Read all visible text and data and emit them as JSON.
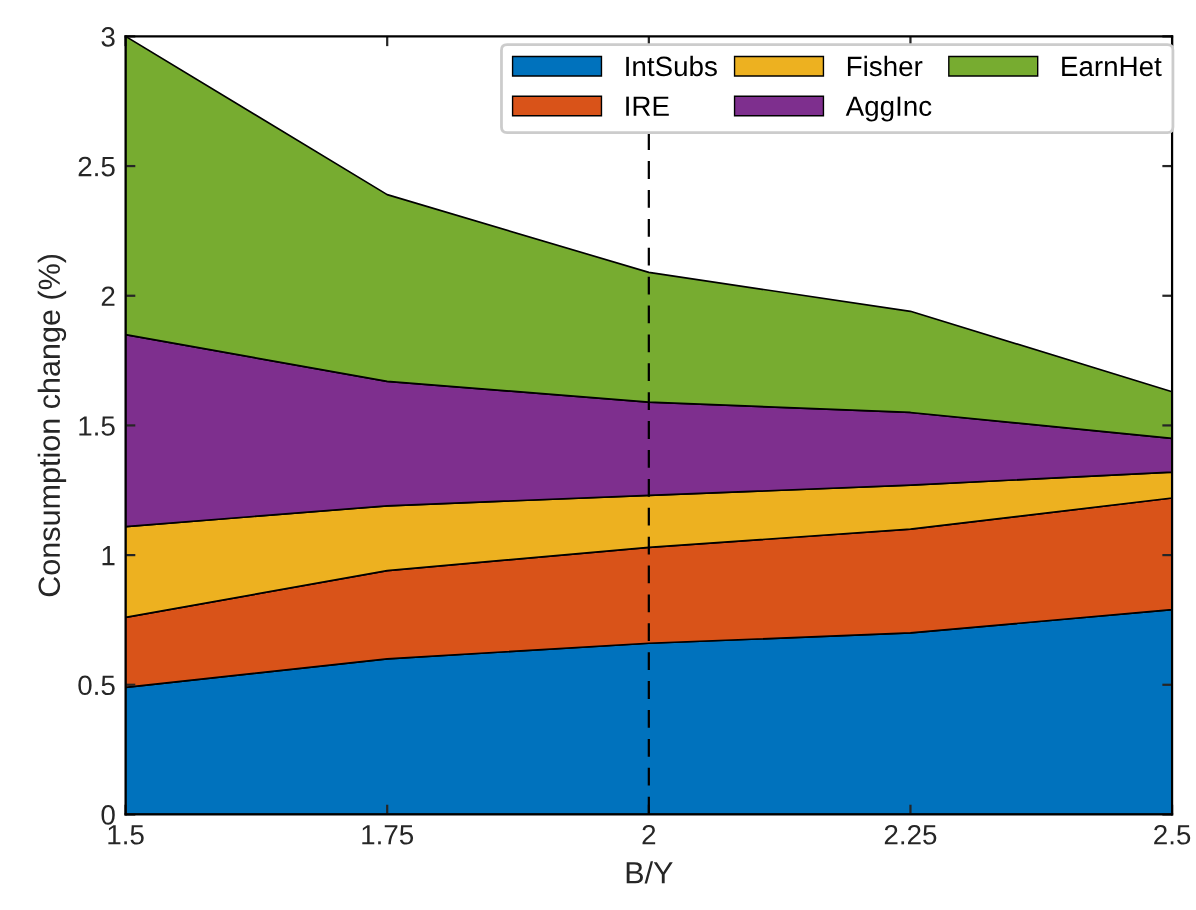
{
  "chart_data": {
    "type": "area",
    "stacked": true,
    "xlabel": "B/Y",
    "ylabel": "Consumption change (%)",
    "x": [
      1.5,
      1.75,
      2,
      2.25,
      2.5
    ],
    "series": [
      {
        "name": "IntSubs",
        "color": "#0072bd",
        "values": [
          0.49,
          0.6,
          0.66,
          0.7,
          0.79
        ]
      },
      {
        "name": "IRE",
        "color": "#d95319",
        "values": [
          0.27,
          0.34,
          0.37,
          0.4,
          0.43
        ]
      },
      {
        "name": "Fisher",
        "color": "#edb120",
        "values": [
          0.35,
          0.25,
          0.2,
          0.17,
          0.1
        ]
      },
      {
        "name": "AggInc",
        "color": "#7e2f8e",
        "values": [
          0.74,
          0.48,
          0.36,
          0.28,
          0.13
        ]
      },
      {
        "name": "EarnHet",
        "color": "#77ac30",
        "values": [
          1.15,
          0.72,
          0.5,
          0.39,
          0.18
        ]
      }
    ],
    "xlim": [
      1.5,
      2.5
    ],
    "xticks": [
      {
        "value": 1.5,
        "label": "1.5"
      },
      {
        "value": 1.75,
        "label": "1.75"
      },
      {
        "value": 2,
        "label": "2"
      },
      {
        "value": 2.25,
        "label": "2.25"
      },
      {
        "value": 2.5,
        "label": "2.5"
      }
    ],
    "ylim": [
      0,
      3
    ],
    "yticks": [
      0,
      {
        "value": 0.5,
        "label": "0.5"
      },
      1,
      {
        "value": 1.5,
        "label": "1.5"
      },
      2,
      {
        "value": 2.5,
        "label": "2.5"
      },
      3
    ],
    "ref_lines": [
      {
        "axis": "x",
        "value": 2,
        "color": "#000000",
        "line_style": "dashed"
      }
    ],
    "grid": false,
    "legend": "top"
  }
}
